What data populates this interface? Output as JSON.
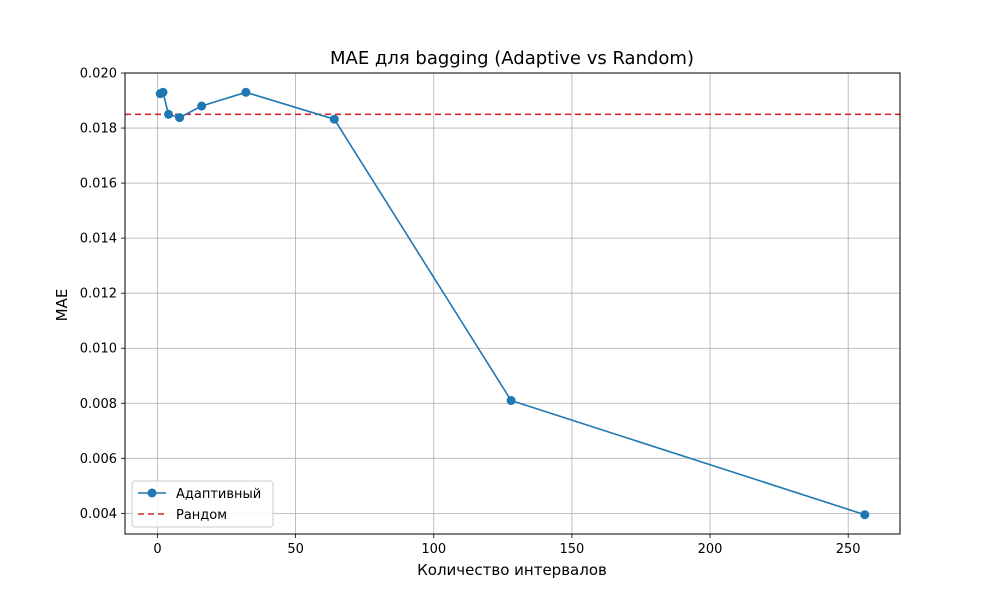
{
  "chart_data": {
    "type": "line",
    "title": "MAE для bagging (Adaptive vs Random)",
    "xlabel": "Количество интервалов",
    "ylabel": "MAE",
    "xlim": [
      -11.75,
      268.75
    ],
    "ylim": [
      0.00325,
      0.02
    ],
    "x_ticks": [
      0,
      50,
      100,
      150,
      200,
      250
    ],
    "y_ticks": [
      0.004,
      0.006,
      0.008,
      0.01,
      0.012,
      0.014,
      0.016,
      0.018,
      0.02
    ],
    "x_tick_labels": [
      "0",
      "50",
      "100",
      "150",
      "200",
      "250"
    ],
    "y_tick_labels": [
      "0.004",
      "0.006",
      "0.008",
      "0.010",
      "0.012",
      "0.014",
      "0.016",
      "0.018",
      "0.020"
    ],
    "grid": true,
    "legend_position": "lower-left",
    "series": [
      {
        "name": "Адаптивный",
        "style": "line-marker",
        "color": "#1f77b4",
        "x": [
          1,
          2,
          4,
          8,
          16,
          32,
          64,
          128,
          256
        ],
        "y": [
          0.01925,
          0.0193,
          0.0185,
          0.01838,
          0.0188,
          0.0193,
          0.01832,
          0.0081,
          0.00395
        ]
      },
      {
        "name": "Рандом",
        "style": "dashed-hline",
        "color": "#d62728",
        "y_value": 0.0185
      }
    ]
  }
}
